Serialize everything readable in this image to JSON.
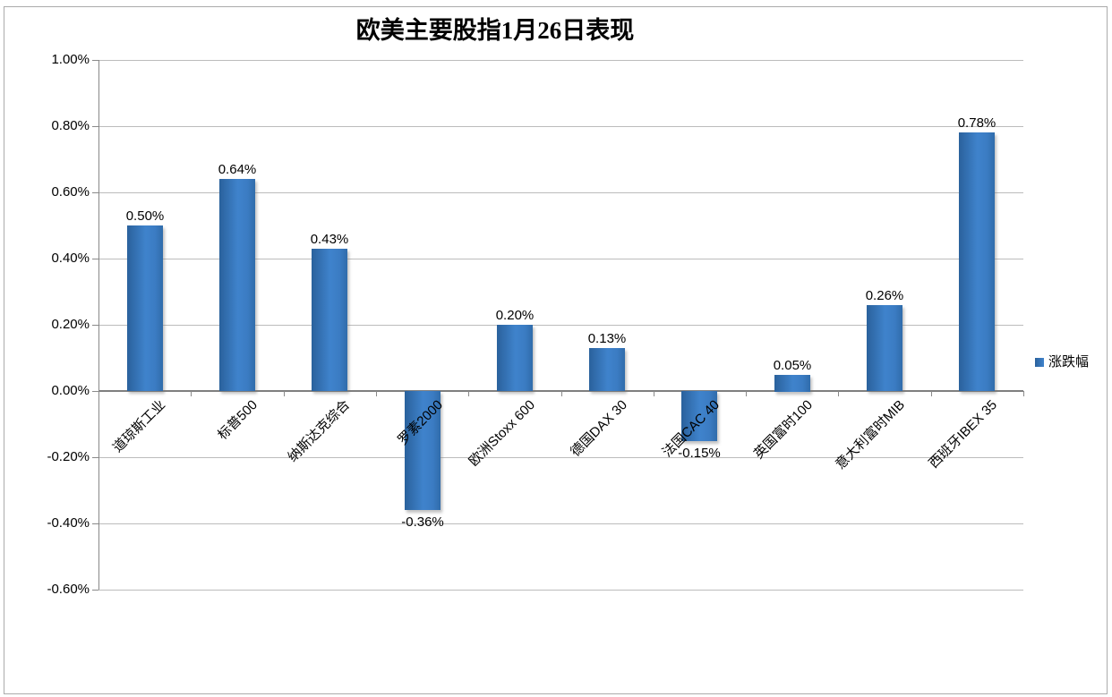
{
  "chart_data": {
    "type": "bar",
    "title": "欧美主要股指1月26日表现",
    "categories": [
      "道琼斯工业",
      "标普500",
      "纳斯达克综合",
      "罗素2000",
      "欧洲Stoxx 600",
      "德国DAX 30",
      "法国CAC 40",
      "英国富时100",
      "意大利富时MIB",
      "西班牙IBEX 35"
    ],
    "series": [
      {
        "name": "涨跌幅",
        "values": [
          0.5,
          0.64,
          0.43,
          -0.36,
          0.2,
          0.13,
          -0.15,
          0.05,
          0.26,
          0.78
        ]
      }
    ],
    "value_labels": [
      "0.50%",
      "0.64%",
      "0.43%",
      "-0.36%",
      "0.20%",
      "0.13%",
      "-0.15%",
      "0.05%",
      "0.26%",
      "0.78%"
    ],
    "xlabel": "",
    "ylabel": "",
    "ylim": [
      -0.6,
      1.0
    ],
    "ytick_step": 0.2,
    "ytick_labels": [
      "1.00%",
      "0.80%",
      "0.60%",
      "0.40%",
      "0.20%",
      "0.00%",
      "-0.20%",
      "-0.40%",
      "-0.60%"
    ],
    "legend_position": "right",
    "grid": true,
    "colors": {
      "bar_main": "#3B7CC3",
      "bar_edge_dark": "#2A619C",
      "gridline": "#BCBCBC",
      "zero_axis": "#7F7F7F",
      "axis": "#898989",
      "text": "#000000"
    }
  }
}
